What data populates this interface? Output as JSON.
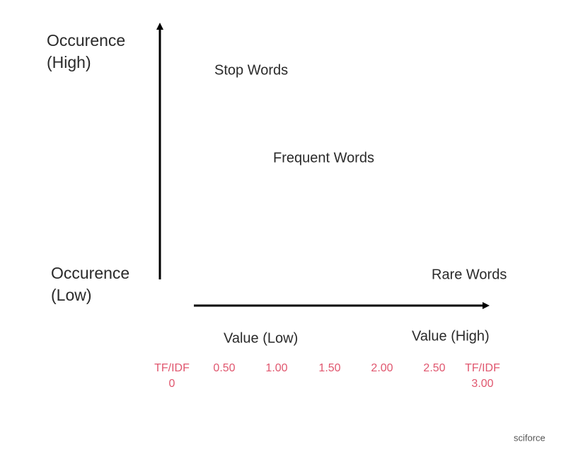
{
  "axes": {
    "y_high": [
      "Occurence",
      "(High)"
    ],
    "y_low": [
      "Occurence",
      "(Low)"
    ],
    "x_low": "Value (Low)",
    "x_high": "Value (High)"
  },
  "regions": [
    "Stop Words",
    "Frequent Words",
    "Rare Words"
  ],
  "scale": [
    [
      "TF/IDF",
      "0"
    ],
    [
      "0.50"
    ],
    [
      "1.00"
    ],
    [
      "1.50"
    ],
    [
      "2.00"
    ],
    [
      "2.50"
    ],
    [
      "TF/IDF",
      "3.00"
    ]
  ],
  "logo": "sciforce"
}
